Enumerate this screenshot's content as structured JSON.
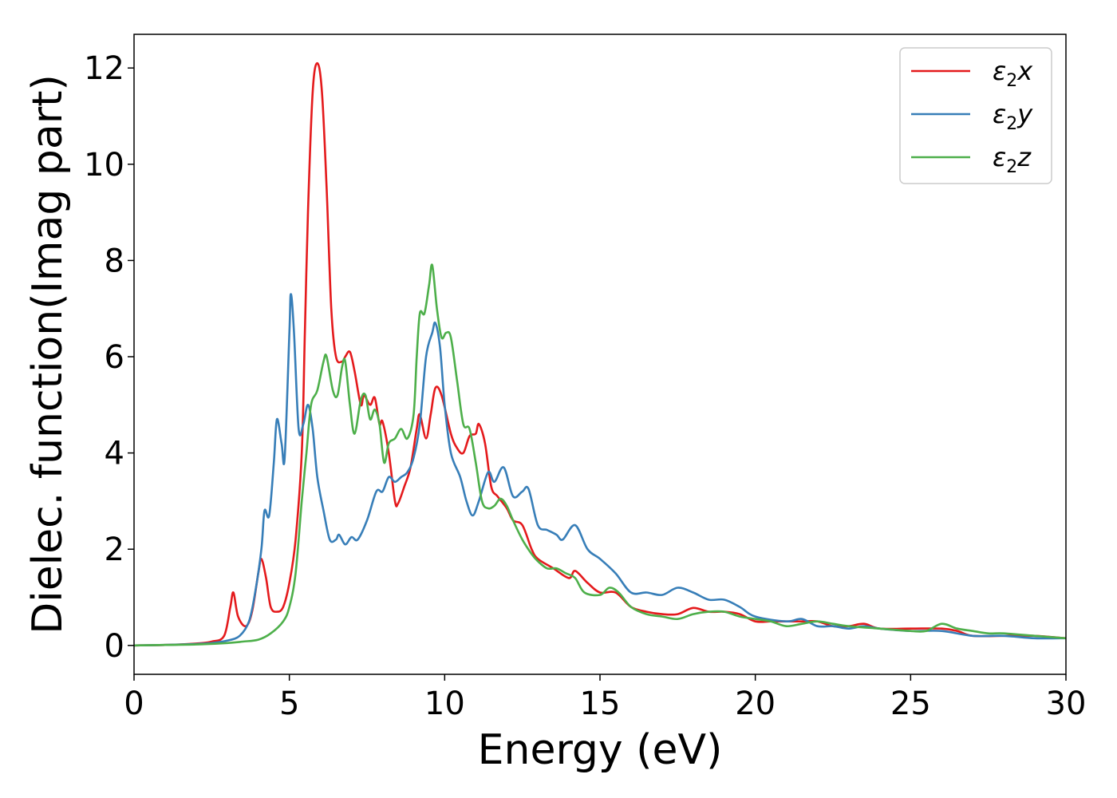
{
  "chart_data": {
    "type": "line",
    "title": "",
    "xlabel": "Energy (eV)",
    "ylabel": "Dielec. function(Imag part)",
    "xlim": [
      0,
      30
    ],
    "ylim": [
      -0.6,
      12.7
    ],
    "xticks": [
      0,
      5,
      10,
      15,
      20,
      25,
      30
    ],
    "yticks": [
      0,
      2,
      4,
      6,
      8,
      10,
      12
    ],
    "grid": false,
    "legend_position": "top-right",
    "series": [
      {
        "name": "ε2x",
        "legend_base": "ε",
        "legend_sub": "2",
        "legend_var": "x",
        "color": "#e41a1c",
        "points": [
          [
            0,
            0
          ],
          [
            1,
            0.01
          ],
          [
            2,
            0.04
          ],
          [
            2.5,
            0.08
          ],
          [
            2.9,
            0.2
          ],
          [
            3.1,
            0.8
          ],
          [
            3.2,
            1.1
          ],
          [
            3.35,
            0.6
          ],
          [
            3.6,
            0.4
          ],
          [
            3.8,
            0.7
          ],
          [
            4.0,
            1.5
          ],
          [
            4.1,
            1.8
          ],
          [
            4.25,
            1.4
          ],
          [
            4.4,
            0.8
          ],
          [
            4.6,
            0.7
          ],
          [
            4.8,
            0.8
          ],
          [
            5.0,
            1.3
          ],
          [
            5.2,
            2.2
          ],
          [
            5.4,
            4.0
          ],
          [
            5.5,
            6.5
          ],
          [
            5.6,
            9.0
          ],
          [
            5.75,
            11.5
          ],
          [
            5.9,
            12.1
          ],
          [
            6.05,
            11.5
          ],
          [
            6.2,
            9.5
          ],
          [
            6.35,
            7.0
          ],
          [
            6.5,
            6.0
          ],
          [
            6.7,
            5.9
          ],
          [
            6.8,
            6.0
          ],
          [
            6.95,
            6.1
          ],
          [
            7.1,
            5.7
          ],
          [
            7.3,
            5.0
          ],
          [
            7.4,
            5.2
          ],
          [
            7.6,
            5.0
          ],
          [
            7.75,
            5.15
          ],
          [
            7.9,
            4.6
          ],
          [
            8.0,
            4.65
          ],
          [
            8.2,
            4.0
          ],
          [
            8.4,
            3.0
          ],
          [
            8.5,
            2.95
          ],
          [
            8.7,
            3.3
          ],
          [
            8.9,
            3.7
          ],
          [
            9.1,
            4.5
          ],
          [
            9.2,
            4.8
          ],
          [
            9.4,
            4.3
          ],
          [
            9.55,
            4.8
          ],
          [
            9.7,
            5.35
          ],
          [
            9.9,
            5.2
          ],
          [
            10.2,
            4.4
          ],
          [
            10.4,
            4.1
          ],
          [
            10.6,
            4.0
          ],
          [
            10.8,
            4.35
          ],
          [
            11.0,
            4.4
          ],
          [
            11.1,
            4.6
          ],
          [
            11.3,
            4.2
          ],
          [
            11.5,
            3.3
          ],
          [
            11.7,
            3.1
          ],
          [
            12.0,
            2.85
          ],
          [
            12.2,
            2.6
          ],
          [
            12.5,
            2.5
          ],
          [
            12.8,
            2.0
          ],
          [
            13.0,
            1.8
          ],
          [
            13.5,
            1.6
          ],
          [
            14.0,
            1.4
          ],
          [
            14.2,
            1.55
          ],
          [
            14.6,
            1.3
          ],
          [
            15.0,
            1.1
          ],
          [
            15.5,
            1.1
          ],
          [
            16.0,
            0.8
          ],
          [
            16.5,
            0.7
          ],
          [
            17.0,
            0.65
          ],
          [
            17.5,
            0.65
          ],
          [
            18.0,
            0.78
          ],
          [
            18.5,
            0.7
          ],
          [
            19.0,
            0.7
          ],
          [
            19.5,
            0.65
          ],
          [
            20.0,
            0.5
          ],
          [
            20.5,
            0.5
          ],
          [
            21.0,
            0.5
          ],
          [
            21.5,
            0.5
          ],
          [
            22.0,
            0.5
          ],
          [
            22.5,
            0.4
          ],
          [
            23.0,
            0.4
          ],
          [
            23.5,
            0.45
          ],
          [
            24.0,
            0.35
          ],
          [
            25.0,
            0.35
          ],
          [
            26.0,
            0.35
          ],
          [
            26.5,
            0.3
          ],
          [
            27.0,
            0.2
          ],
          [
            28.0,
            0.2
          ],
          [
            29.0,
            0.2
          ],
          [
            30.0,
            0.15
          ]
        ]
      },
      {
        "name": "ε2y",
        "legend_base": "ε",
        "legend_sub": "2",
        "legend_var": "y",
        "color": "#377eb8",
        "points": [
          [
            0,
            0
          ],
          [
            1,
            0.01
          ],
          [
            2,
            0.03
          ],
          [
            2.5,
            0.05
          ],
          [
            3.0,
            0.1
          ],
          [
            3.4,
            0.2
          ],
          [
            3.7,
            0.5
          ],
          [
            3.9,
            1.1
          ],
          [
            4.1,
            2.0
          ],
          [
            4.2,
            2.8
          ],
          [
            4.35,
            2.7
          ],
          [
            4.5,
            3.8
          ],
          [
            4.6,
            4.7
          ],
          [
            4.75,
            4.2
          ],
          [
            4.85,
            3.9
          ],
          [
            5.0,
            6.5
          ],
          [
            5.05,
            7.3
          ],
          [
            5.15,
            6.5
          ],
          [
            5.3,
            4.5
          ],
          [
            5.45,
            4.6
          ],
          [
            5.6,
            5.0
          ],
          [
            5.75,
            4.5
          ],
          [
            5.9,
            3.5
          ],
          [
            6.1,
            2.8
          ],
          [
            6.3,
            2.2
          ],
          [
            6.5,
            2.2
          ],
          [
            6.6,
            2.3
          ],
          [
            6.8,
            2.1
          ],
          [
            7.0,
            2.25
          ],
          [
            7.2,
            2.2
          ],
          [
            7.5,
            2.6
          ],
          [
            7.8,
            3.2
          ],
          [
            8.0,
            3.2
          ],
          [
            8.2,
            3.5
          ],
          [
            8.4,
            3.4
          ],
          [
            8.6,
            3.5
          ],
          [
            8.8,
            3.6
          ],
          [
            9.0,
            3.9
          ],
          [
            9.2,
            4.6
          ],
          [
            9.4,
            6.0
          ],
          [
            9.6,
            6.5
          ],
          [
            9.7,
            6.7
          ],
          [
            9.85,
            6.2
          ],
          [
            10.0,
            5.0
          ],
          [
            10.2,
            4.0
          ],
          [
            10.5,
            3.5
          ],
          [
            10.7,
            3.0
          ],
          [
            10.9,
            2.7
          ],
          [
            11.1,
            3.0
          ],
          [
            11.4,
            3.6
          ],
          [
            11.6,
            3.4
          ],
          [
            11.9,
            3.7
          ],
          [
            12.2,
            3.1
          ],
          [
            12.5,
            3.2
          ],
          [
            12.7,
            3.25
          ],
          [
            13.0,
            2.5
          ],
          [
            13.3,
            2.4
          ],
          [
            13.6,
            2.3
          ],
          [
            13.8,
            2.2
          ],
          [
            14.2,
            2.5
          ],
          [
            14.6,
            2.0
          ],
          [
            15.0,
            1.8
          ],
          [
            15.5,
            1.5
          ],
          [
            16.0,
            1.1
          ],
          [
            16.5,
            1.1
          ],
          [
            17.0,
            1.05
          ],
          [
            17.5,
            1.2
          ],
          [
            18.0,
            1.1
          ],
          [
            18.5,
            0.95
          ],
          [
            19.0,
            0.95
          ],
          [
            19.5,
            0.8
          ],
          [
            20.0,
            0.6
          ],
          [
            21.0,
            0.5
          ],
          [
            21.5,
            0.55
          ],
          [
            22.0,
            0.4
          ],
          [
            22.5,
            0.4
          ],
          [
            23.0,
            0.35
          ],
          [
            23.5,
            0.4
          ],
          [
            24.0,
            0.35
          ],
          [
            25.0,
            0.3
          ],
          [
            26.0,
            0.3
          ],
          [
            27.0,
            0.2
          ],
          [
            28.0,
            0.2
          ],
          [
            29.0,
            0.15
          ],
          [
            30.0,
            0.15
          ]
        ]
      },
      {
        "name": "ε2z",
        "legend_base": "ε",
        "legend_sub": "2",
        "legend_var": "z",
        "color": "#4daf4a",
        "points": [
          [
            0,
            0
          ],
          [
            1,
            0.01
          ],
          [
            2,
            0.02
          ],
          [
            3,
            0.05
          ],
          [
            3.5,
            0.08
          ],
          [
            4.0,
            0.12
          ],
          [
            4.4,
            0.25
          ],
          [
            4.8,
            0.5
          ],
          [
            5.0,
            0.8
          ],
          [
            5.2,
            1.5
          ],
          [
            5.4,
            3.0
          ],
          [
            5.55,
            4.0
          ],
          [
            5.7,
            5.0
          ],
          [
            5.9,
            5.3
          ],
          [
            6.1,
            5.9
          ],
          [
            6.2,
            6.0
          ],
          [
            6.4,
            5.3
          ],
          [
            6.55,
            5.2
          ],
          [
            6.7,
            5.8
          ],
          [
            6.8,
            5.9
          ],
          [
            6.95,
            5.0
          ],
          [
            7.1,
            4.4
          ],
          [
            7.3,
            5.1
          ],
          [
            7.45,
            5.2
          ],
          [
            7.6,
            4.7
          ],
          [
            7.75,
            4.9
          ],
          [
            7.9,
            4.6
          ],
          [
            8.05,
            3.8
          ],
          [
            8.2,
            4.2
          ],
          [
            8.4,
            4.3
          ],
          [
            8.6,
            4.5
          ],
          [
            8.8,
            4.3
          ],
          [
            9.0,
            4.8
          ],
          [
            9.1,
            6.0
          ],
          [
            9.2,
            6.9
          ],
          [
            9.35,
            6.9
          ],
          [
            9.5,
            7.5
          ],
          [
            9.6,
            7.9
          ],
          [
            9.75,
            7.0
          ],
          [
            9.9,
            6.4
          ],
          [
            10.05,
            6.5
          ],
          [
            10.2,
            6.4
          ],
          [
            10.4,
            5.5
          ],
          [
            10.6,
            4.6
          ],
          [
            10.8,
            4.5
          ],
          [
            11.0,
            3.8
          ],
          [
            11.2,
            3.0
          ],
          [
            11.4,
            2.85
          ],
          [
            11.6,
            2.9
          ],
          [
            11.8,
            3.05
          ],
          [
            12.0,
            2.9
          ],
          [
            12.2,
            2.6
          ],
          [
            12.5,
            2.2
          ],
          [
            12.8,
            1.9
          ],
          [
            13.0,
            1.75
          ],
          [
            13.3,
            1.6
          ],
          [
            13.6,
            1.6
          ],
          [
            13.9,
            1.5
          ],
          [
            14.2,
            1.4
          ],
          [
            14.5,
            1.1
          ],
          [
            15.0,
            1.05
          ],
          [
            15.3,
            1.2
          ],
          [
            15.6,
            1.1
          ],
          [
            16.0,
            0.8
          ],
          [
            16.5,
            0.65
          ],
          [
            17.0,
            0.6
          ],
          [
            17.5,
            0.55
          ],
          [
            18.0,
            0.65
          ],
          [
            18.5,
            0.7
          ],
          [
            19.0,
            0.7
          ],
          [
            19.5,
            0.6
          ],
          [
            20.0,
            0.55
          ],
          [
            20.5,
            0.5
          ],
          [
            21.0,
            0.4
          ],
          [
            21.5,
            0.45
          ],
          [
            22.0,
            0.5
          ],
          [
            22.5,
            0.45
          ],
          [
            23.0,
            0.4
          ],
          [
            24.0,
            0.35
          ],
          [
            25.0,
            0.3
          ],
          [
            25.5,
            0.3
          ],
          [
            26.0,
            0.45
          ],
          [
            26.5,
            0.35
          ],
          [
            27.0,
            0.3
          ],
          [
            27.5,
            0.25
          ],
          [
            28.0,
            0.25
          ],
          [
            29.0,
            0.2
          ],
          [
            30.0,
            0.15
          ]
        ]
      }
    ]
  }
}
